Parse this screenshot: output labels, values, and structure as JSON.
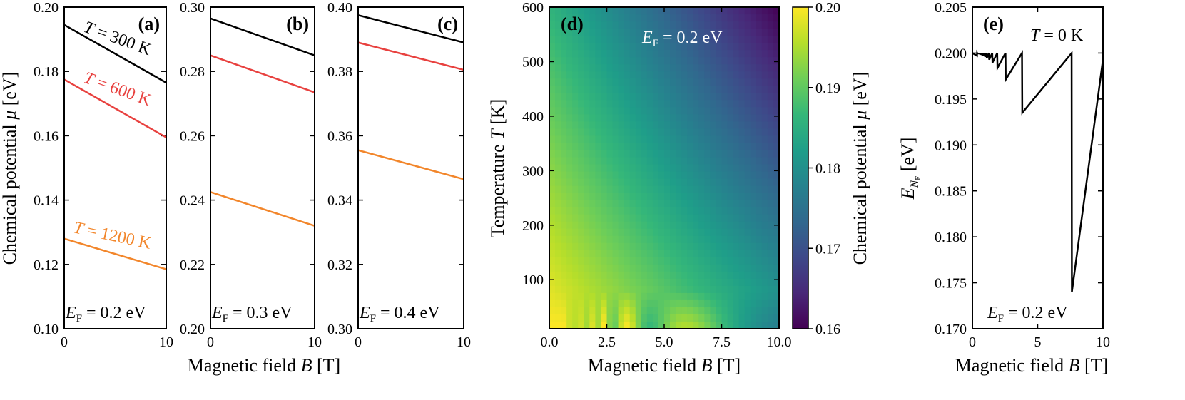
{
  "colors": {
    "black": "#000000",
    "red": "#e8413f",
    "orange": "#f2862b",
    "viridis": [
      "#440154",
      "#482878",
      "#3e4989",
      "#31688e",
      "#26828e",
      "#1f9e89",
      "#35b779",
      "#6ece58",
      "#b5de2b",
      "#fde725"
    ]
  },
  "chart_data": [
    {
      "id": "a",
      "type": "line",
      "panel_label": "(a)",
      "xlim": [
        0,
        10
      ],
      "ylim": [
        0.1,
        0.2
      ],
      "xticks": [
        "0",
        "10"
      ],
      "yticks": [
        "0.10",
        "0.12",
        "0.14",
        "0.16",
        "0.18",
        "0.20"
      ],
      "ylabel": "Chemical potential μ [eV]",
      "ef_text": "E_F = 0.2 eV",
      "series": [
        {
          "name": "T = 300 K",
          "color": "black",
          "x": [
            0,
            10
          ],
          "y": [
            0.1945,
            0.1765
          ],
          "label_prefix": "T",
          "label_value": " = 300 K"
        },
        {
          "name": "T = 600 K",
          "color": "red",
          "x": [
            0,
            10
          ],
          "y": [
            0.1775,
            0.1595
          ],
          "label_prefix": "T",
          "label_value": " = 600 K"
        },
        {
          "name": "T = 1200 K",
          "color": "orange",
          "x": [
            0,
            10
          ],
          "y": [
            0.128,
            0.1185
          ],
          "label_prefix": "T",
          "label_value": " = 1200 K"
        }
      ]
    },
    {
      "id": "b",
      "type": "line",
      "panel_label": "(b)",
      "xlim": [
        0,
        10
      ],
      "ylim": [
        0.2,
        0.3
      ],
      "xticks": [
        "0",
        "10"
      ],
      "yticks": [
        "0.20",
        "0.22",
        "0.24",
        "0.26",
        "0.28",
        "0.30"
      ],
      "ef_text": "E_F = 0.3 eV",
      "series": [
        {
          "name": "T = 300 K",
          "color": "black",
          "x": [
            0,
            10
          ],
          "y": [
            0.2965,
            0.285
          ]
        },
        {
          "name": "T = 600 K",
          "color": "red",
          "x": [
            0,
            10
          ],
          "y": [
            0.285,
            0.2735
          ]
        },
        {
          "name": "T = 1200 K",
          "color": "orange",
          "x": [
            0,
            10
          ],
          "y": [
            0.2425,
            0.232
          ]
        }
      ]
    },
    {
      "id": "c",
      "type": "line",
      "panel_label": "(c)",
      "xlim": [
        0,
        10
      ],
      "ylim": [
        0.3,
        0.4
      ],
      "xticks": [
        "0",
        "10"
      ],
      "yticks": [
        "0.30",
        "0.32",
        "0.34",
        "0.36",
        "0.38",
        "0.40"
      ],
      "ef_text": "E_F = 0.4 eV",
      "series": [
        {
          "name": "T = 300 K",
          "color": "black",
          "x": [
            0,
            10
          ],
          "y": [
            0.3975,
            0.389
          ]
        },
        {
          "name": "T = 600 K",
          "color": "red",
          "x": [
            0,
            10
          ],
          "y": [
            0.389,
            0.3805
          ]
        },
        {
          "name": "T = 1200 K",
          "color": "orange",
          "x": [
            0,
            10
          ],
          "y": [
            0.3555,
            0.3465
          ]
        }
      ]
    },
    {
      "id": "d",
      "type": "heatmap",
      "panel_label": "(d)",
      "xlim": [
        0,
        10
      ],
      "ylim": [
        10,
        600
      ],
      "xticks": [
        "0.0",
        "2.5",
        "5.0",
        "7.5",
        "10.0"
      ],
      "yticks": [
        "100",
        "200",
        "300",
        "400",
        "500",
        "600"
      ],
      "ylabel": "Temperature T [K]",
      "ef_text": "E_F = 0.2 eV",
      "zlim": [
        0.16,
        0.2
      ],
      "colorbar_ticks": [
        "0.16",
        "0.17",
        "0.18",
        "0.19",
        "0.20"
      ],
      "colorbar_label": "Chemical potential μ [eV]",
      "corner_values": {
        "B0_T10": 0.2,
        "B10_T10": 0.183,
        "B0_T600": 0.186,
        "B10_T600": 0.16
      }
    },
    {
      "id": "e",
      "type": "line",
      "panel_label": "(e)",
      "xlim": [
        0,
        10
      ],
      "ylim": [
        0.17,
        0.205
      ],
      "xticks": [
        "0",
        "5",
        "10"
      ],
      "yticks": [
        "0.170",
        "0.175",
        "0.180",
        "0.185",
        "0.190",
        "0.195",
        "0.200",
        "0.205"
      ],
      "ylabel": "E_NF [eV]",
      "temp_text": "T = 0 K",
      "ef_text": "E_F = 0.2 eV",
      "series": [
        {
          "name": "E_NF",
          "color": "black",
          "sawtooth": {
            "ef": 0.2,
            "period_const": 7.6,
            "min_B": 0.35,
            "depth_coef": 0.1
          }
        }
      ]
    }
  ],
  "shared_xlabel": "Magnetic field B [T]"
}
